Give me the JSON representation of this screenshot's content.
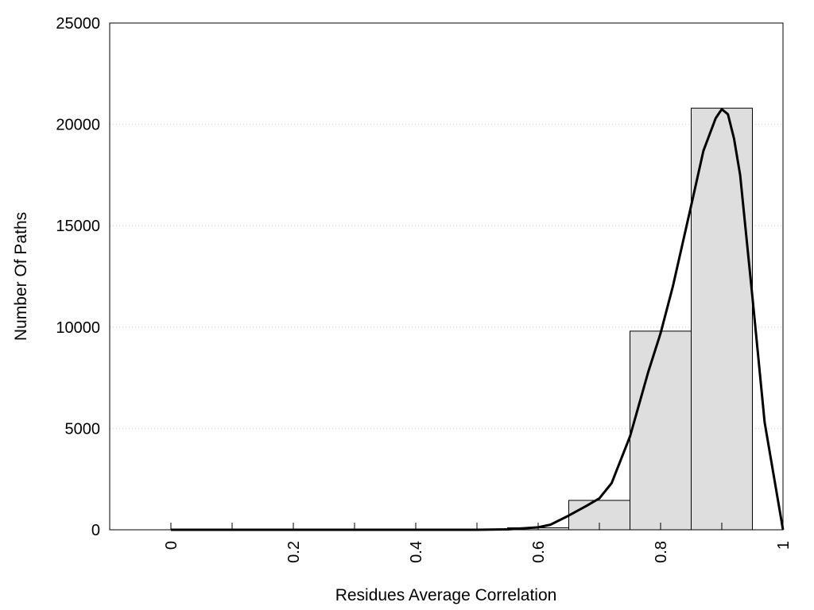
{
  "chart_data": {
    "type": "bar",
    "xlabel": "Residues Average Correlation",
    "ylabel": "Number Of Paths",
    "xlim": [
      -0.1,
      1.0
    ],
    "ylim": [
      0,
      25000
    ],
    "x_ticks": [
      "0",
      "0.2",
      "0.4",
      "0.6",
      "0.8",
      "1"
    ],
    "y_ticks": [
      "0",
      "5000",
      "10000",
      "15000",
      "20000",
      "25000"
    ],
    "y_grid": true,
    "bar_color": "#dedede",
    "histogram": {
      "bin_width": 0.1,
      "bins": [
        {
          "center": 0.0,
          "value": 0
        },
        {
          "center": 0.1,
          "value": 0
        },
        {
          "center": 0.2,
          "value": 0
        },
        {
          "center": 0.3,
          "value": 0
        },
        {
          "center": 0.4,
          "value": 0
        },
        {
          "center": 0.5,
          "value": 0
        },
        {
          "center": 0.6,
          "value": 100
        },
        {
          "center": 0.7,
          "value": 1450
        },
        {
          "center": 0.8,
          "value": 9800
        },
        {
          "center": 0.9,
          "value": 20800
        }
      ]
    },
    "density_curve": {
      "x": [
        0.0,
        0.1,
        0.2,
        0.3,
        0.4,
        0.5,
        0.55,
        0.6,
        0.62,
        0.65,
        0.68,
        0.7,
        0.72,
        0.75,
        0.78,
        0.8,
        0.82,
        0.85,
        0.87,
        0.89,
        0.9,
        0.91,
        0.92,
        0.93,
        0.95,
        0.97,
        1.0
      ],
      "y": [
        0,
        0,
        0,
        0,
        0,
        0,
        20,
        120,
        250,
        700,
        1200,
        1550,
        2300,
        4600,
        7800,
        9700,
        12000,
        16000,
        18700,
        20300,
        20750,
        20500,
        19300,
        17500,
        11500,
        5300,
        0
      ]
    }
  }
}
